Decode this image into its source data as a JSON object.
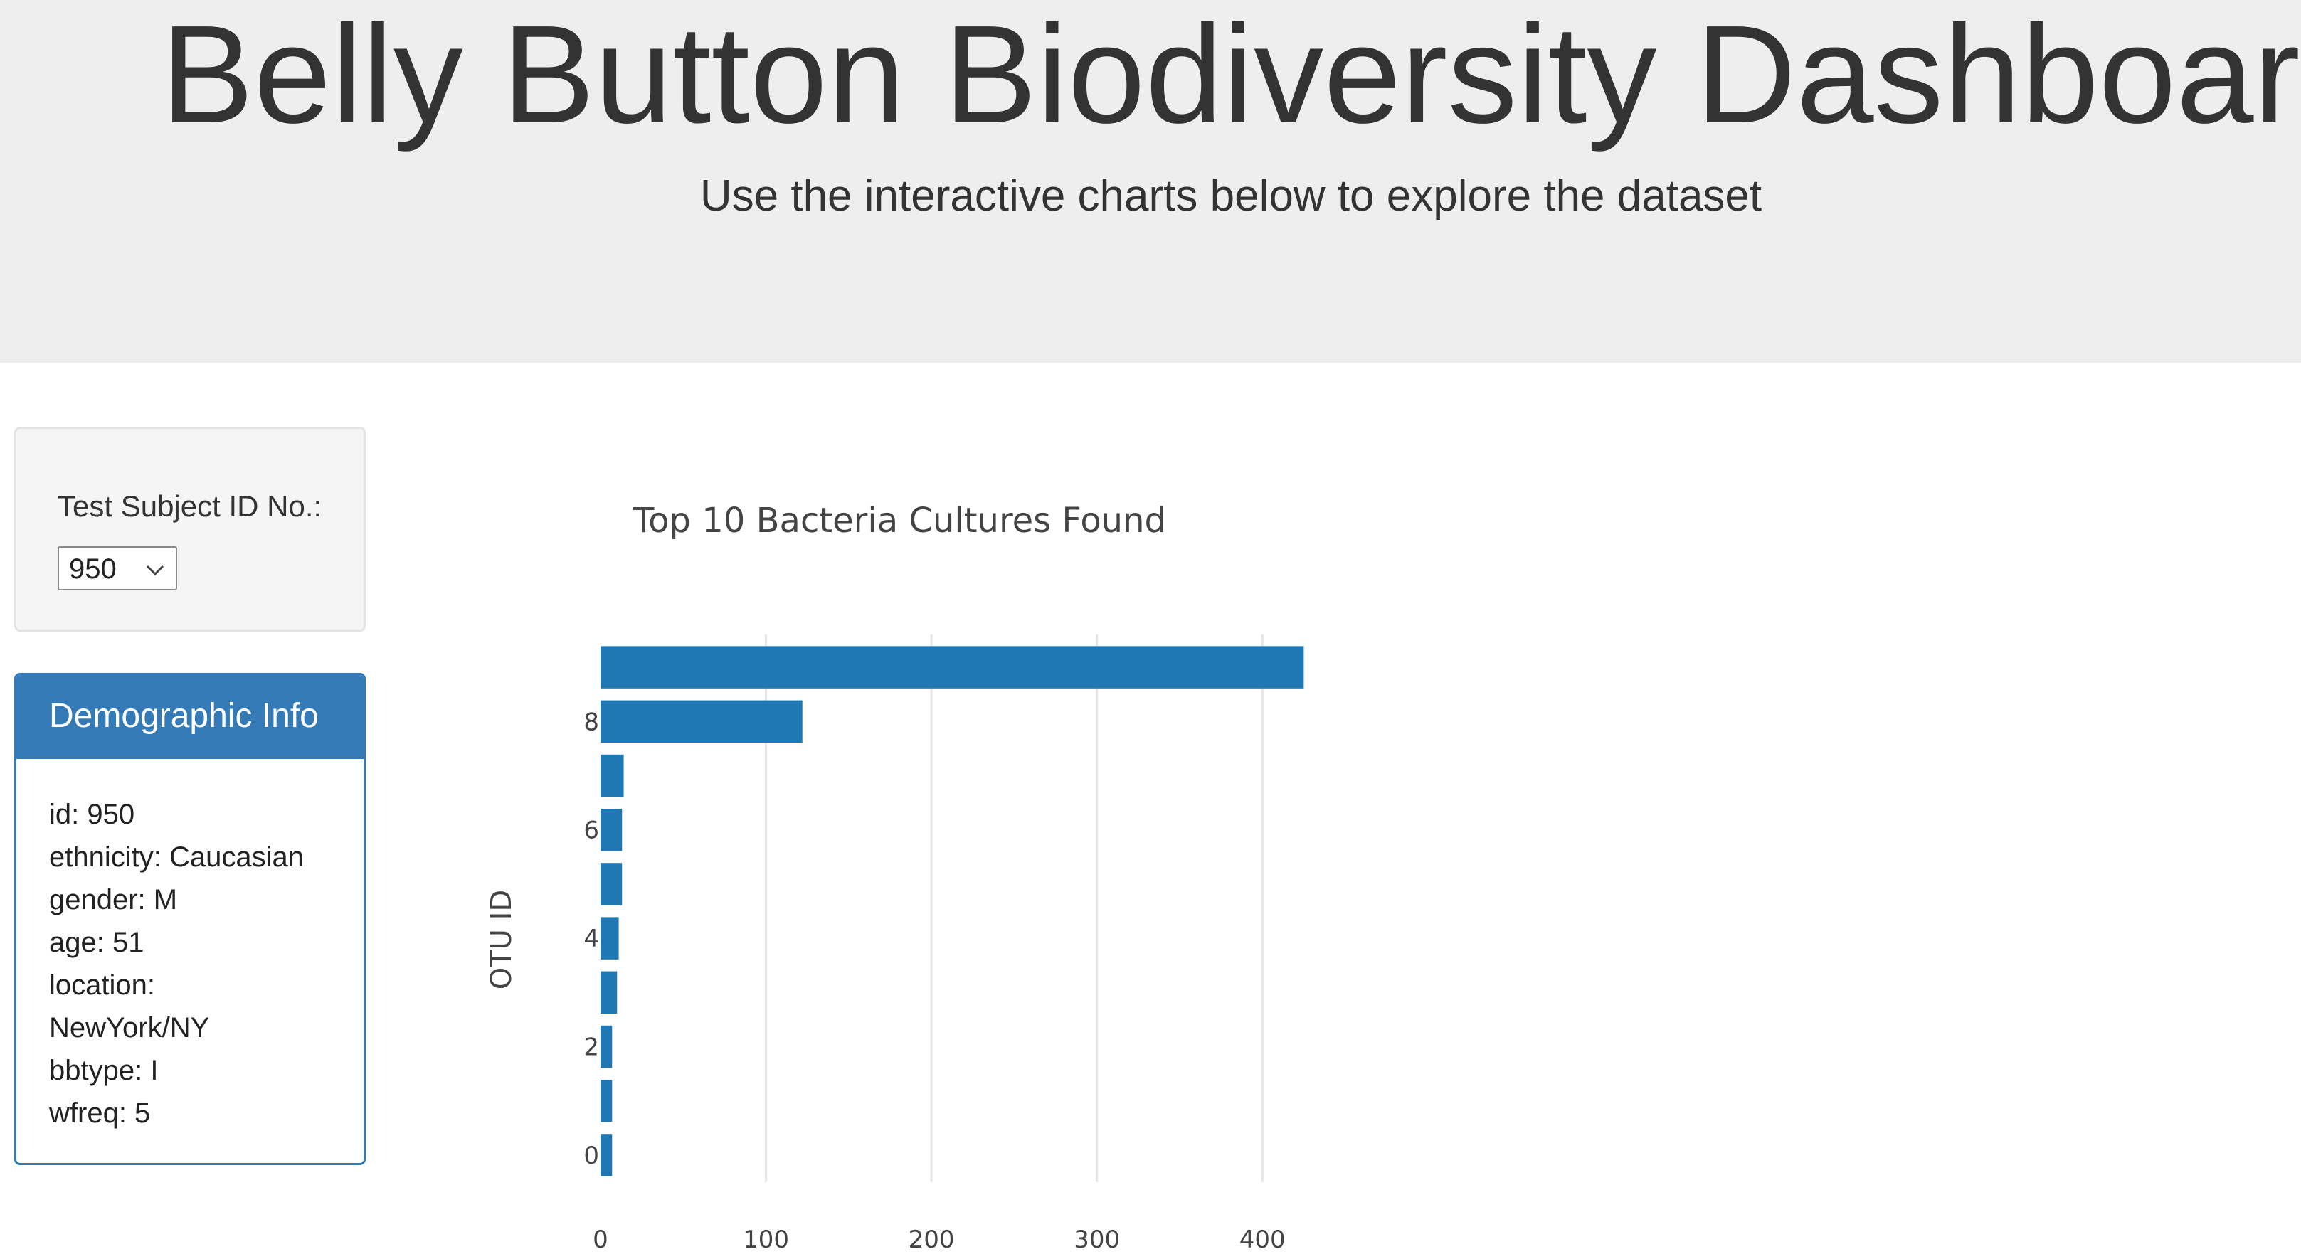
{
  "header": {
    "title": "Belly Button Biodiversity Dashboard",
    "subtitle": "Use the interactive charts below to explore the dataset"
  },
  "selector": {
    "label": "Test Subject ID No.:",
    "selected_value": "950"
  },
  "demographics": {
    "heading": "Demographic Info",
    "lines": [
      "id: 950",
      "ethnicity: Caucasian",
      "gender: M",
      "age: 51",
      "location:",
      "NewYork/NY",
      "bbtype: I",
      "wfreq: 5"
    ]
  },
  "colors": {
    "header_bg": "#eeeeee",
    "panel_primary": "#337ab7",
    "bar_fill": "#1f77b4",
    "grid": "#e6e6e6"
  },
  "icons": {
    "dropdown": "chevron-down-icon"
  },
  "chart_data": {
    "type": "bar",
    "orientation": "horizontal",
    "title": "Top 10 Bacteria Cultures Found",
    "xlabel": "",
    "ylabel": "OTU ID",
    "y": [
      9,
      8,
      7,
      6,
      5,
      4,
      3,
      2,
      1,
      0
    ],
    "values": [
      425,
      122,
      14,
      13,
      13,
      11,
      10,
      7,
      7,
      7
    ],
    "xlim": [
      0,
      430
    ],
    "x_ticks": [
      0,
      100,
      200,
      300,
      400
    ],
    "y_ticks": [
      0,
      2,
      4,
      6,
      8
    ],
    "grid": "vertical",
    "legend": "none"
  }
}
